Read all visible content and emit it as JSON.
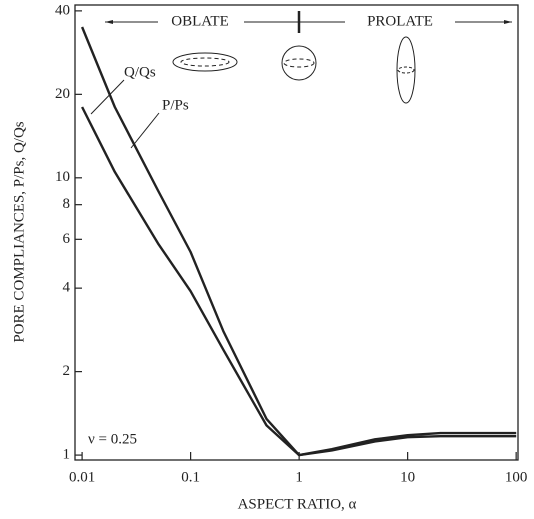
{
  "chart_data": {
    "type": "line",
    "x_label": "ASPECT RATIO, α",
    "y_label": "PORE COMPLIANCES, P/Ps, Q/Qs",
    "annotations": [
      "OBLATE",
      "PROLATE",
      "ν = 0.25"
    ],
    "x": [
      0.01,
      0.02,
      0.05,
      0.1,
      0.2,
      0.5,
      1,
      2,
      5,
      10,
      20,
      50,
      100
    ],
    "series": [
      {
        "name": "P/Ps",
        "color": "#222222",
        "values": [
          35,
          18,
          9,
          5.4,
          2.8,
          1.35,
          1.0,
          1.05,
          1.14,
          1.18,
          1.2,
          1.2,
          1.2
        ]
      },
      {
        "name": "Q/Qs",
        "color": "#222222",
        "values": [
          18,
          10.5,
          5.8,
          3.9,
          2.4,
          1.28,
          1.0,
          1.04,
          1.12,
          1.16,
          1.17,
          1.17,
          1.17
        ]
      }
    ],
    "x_log": true,
    "y_log": true,
    "xlim": [
      0.0086,
      104
    ],
    "ylim": [
      0.96,
      42
    ],
    "xticks": [
      0.01,
      0.1,
      1,
      10,
      100
    ],
    "yticks": [
      1,
      2,
      4,
      6,
      8,
      10,
      20,
      40
    ]
  }
}
